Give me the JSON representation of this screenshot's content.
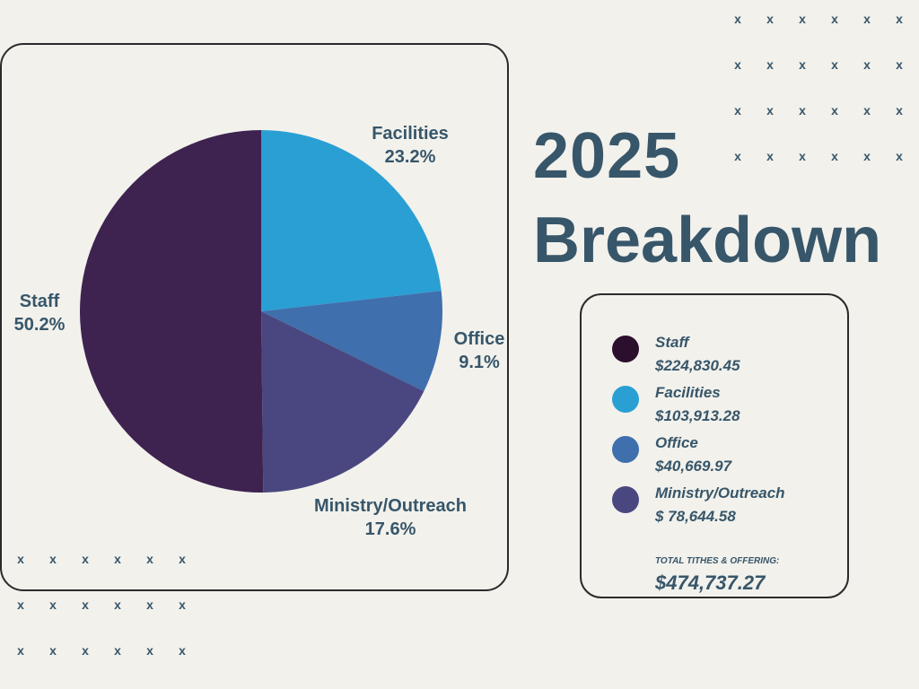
{
  "title": {
    "year": "2025",
    "word": "Breakdown"
  },
  "decor": {
    "mark": "x"
  },
  "chart_data": {
    "type": "pie",
    "categories": [
      "Staff",
      "Facilities",
      "Office",
      "Ministry/Outreach"
    ],
    "values": [
      224830.45,
      103913.28,
      40669.97,
      78644.58
    ],
    "percent_labels": [
      "50.2%",
      "23.2%",
      "9.1%",
      "17.6%"
    ],
    "colors": [
      "#3e2350",
      "#2a9fd4",
      "#3f6fad",
      "#4a4780"
    ],
    "legend": "right"
  },
  "legend": {
    "items": [
      {
        "name": "Staff",
        "value": "$224,830.45",
        "color": "#2b0f2c"
      },
      {
        "name": "Facilities",
        "value": "$103,913.28",
        "color": "#2a9fd4"
      },
      {
        "name": "Office",
        "value": "$40,669.97",
        "color": "#3f6fad"
      },
      {
        "name": "Ministry/Outreach",
        "value": "$ 78,644.58",
        "color": "#4a4780"
      }
    ],
    "total_label": "TOTAL TITHES & OFFERING:",
    "total_value": "$474,737.27"
  }
}
